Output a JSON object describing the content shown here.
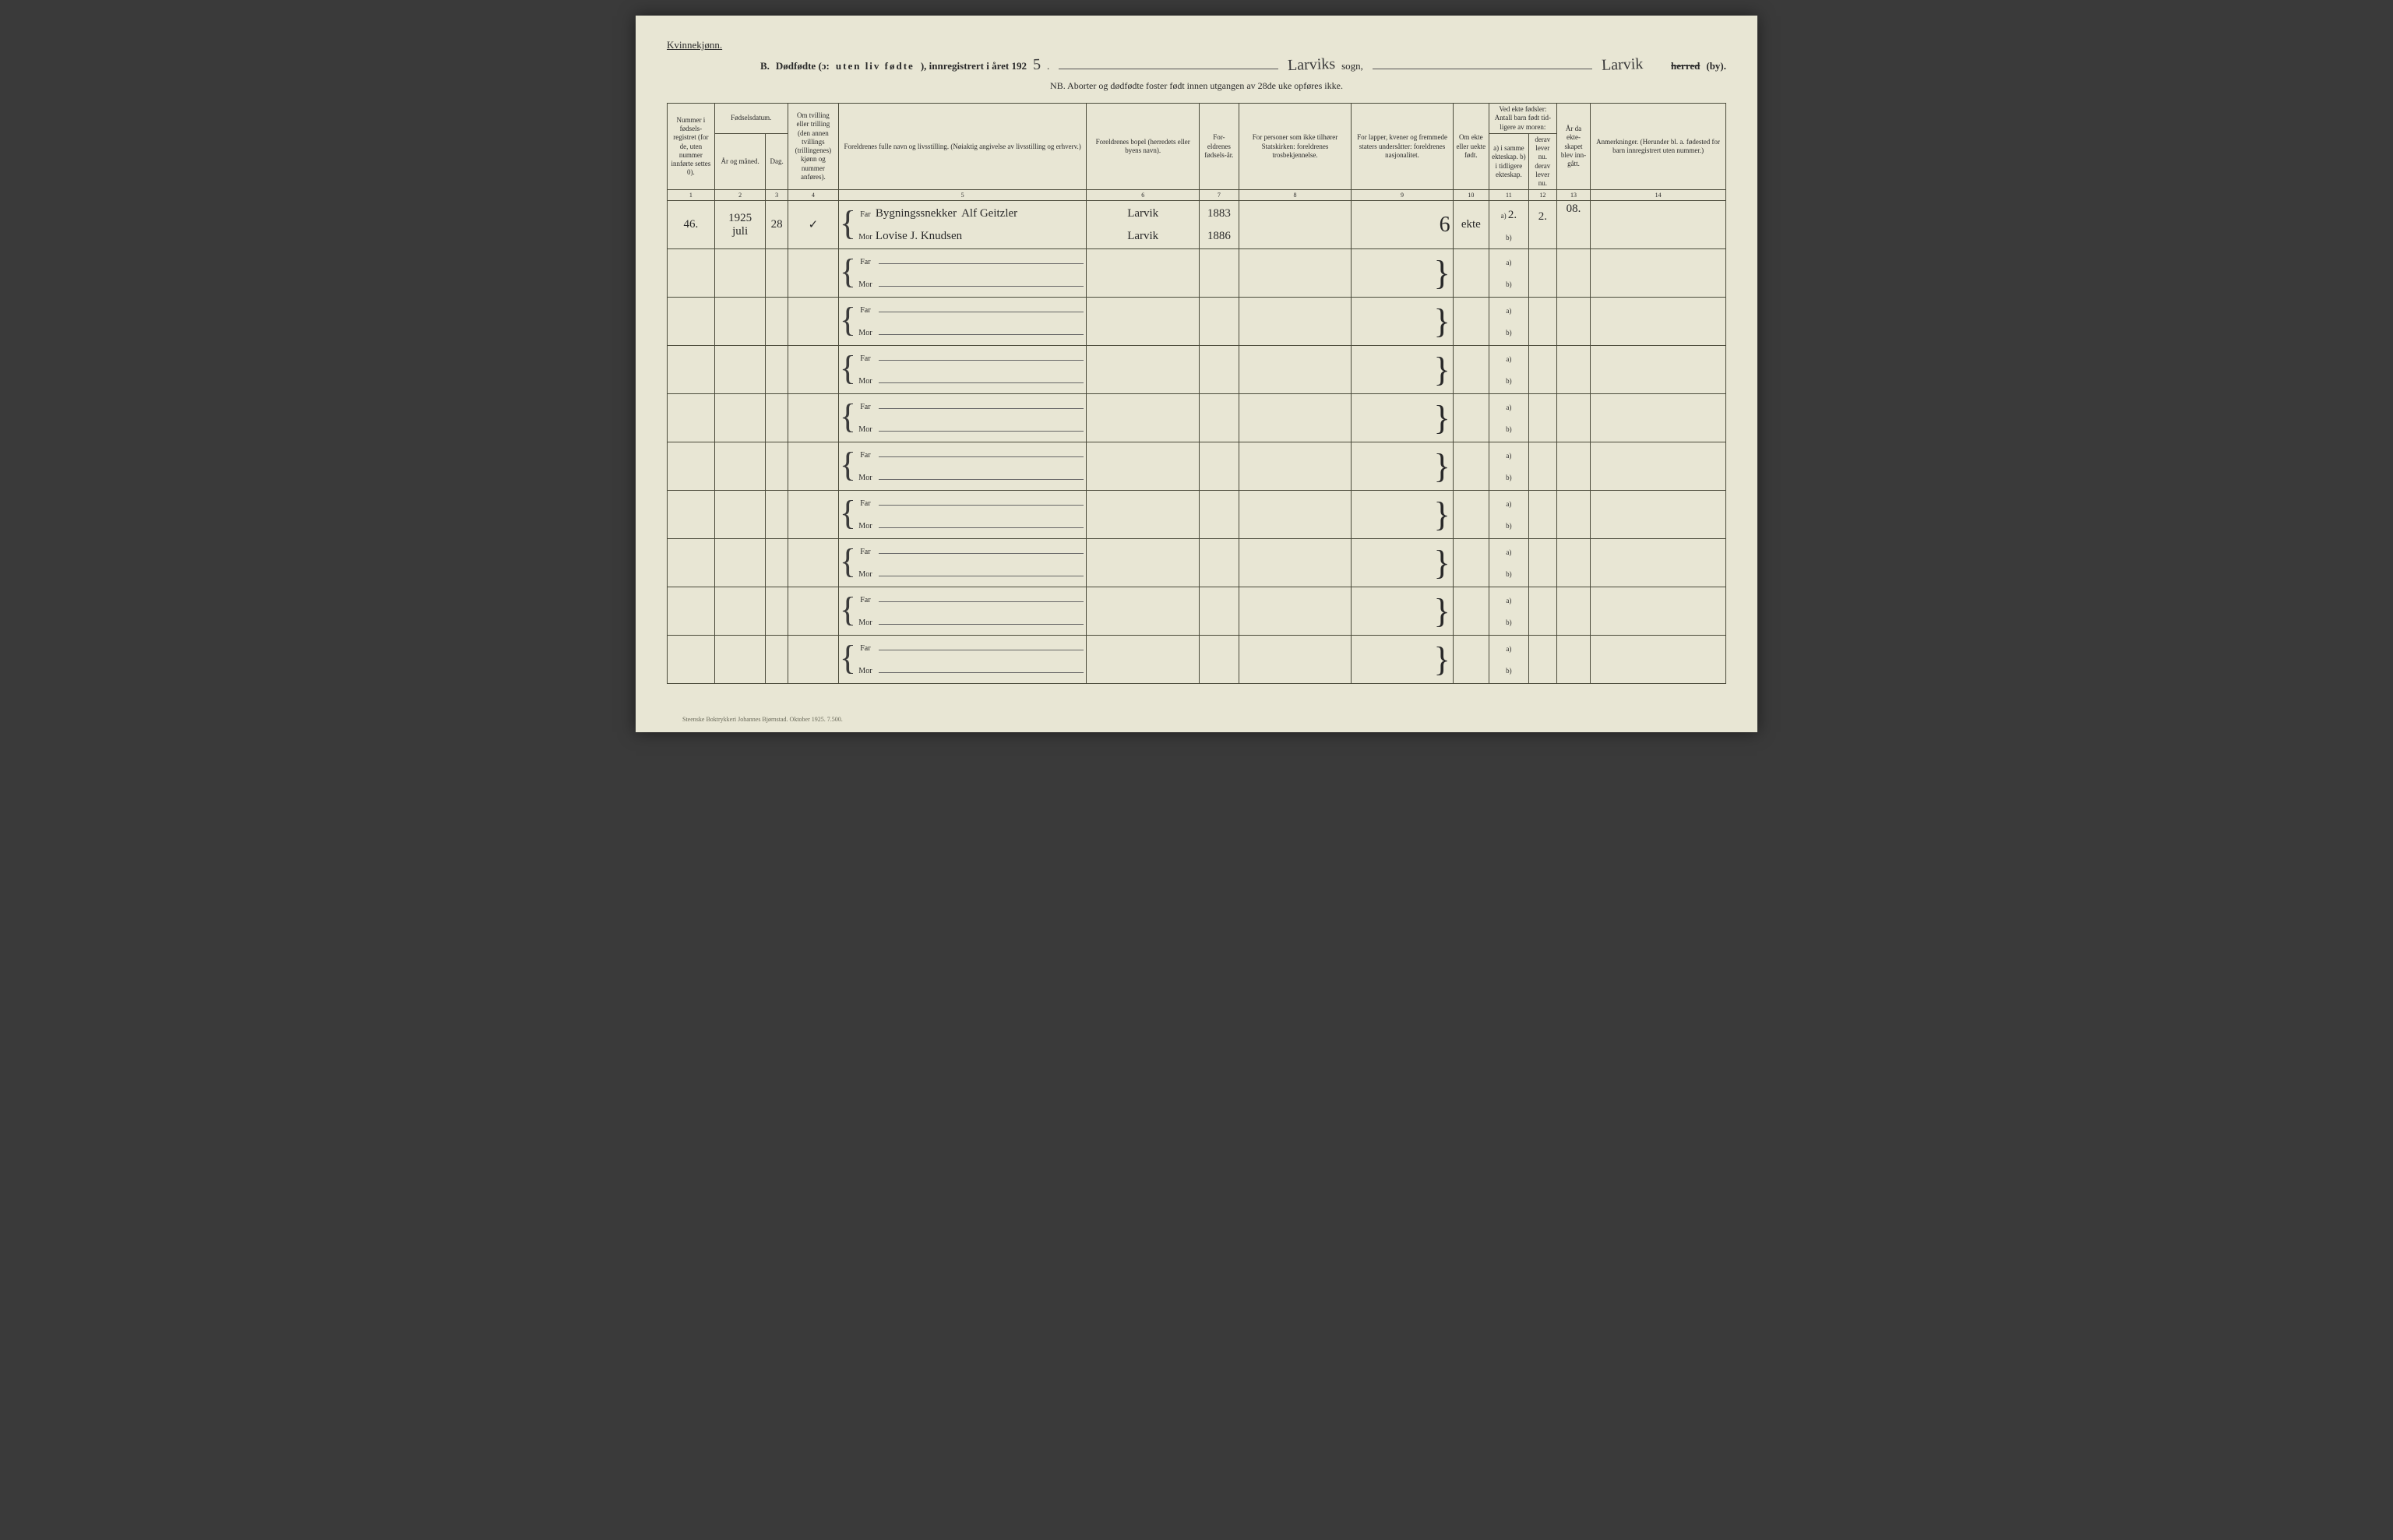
{
  "header": {
    "gender": "Kvinnekjønn.",
    "section": "B.",
    "title_a": "Dødfødte (ɔ:",
    "title_b": "uten liv fødte",
    "title_c": "), innregistrert i året 192",
    "year_suffix": "5",
    "sogn_hand": "Larviks",
    "sogn_label": "sogn,",
    "city_hand": "Larvik",
    "herred_strike": "herred",
    "by": "(by).",
    "nb": "NB.  Aborter og dødfødte foster født innen utgangen av 28de uke opføres ikke."
  },
  "columns": {
    "c1": "Nummer i fødsels-registret (for de, uten nummer innførte settes 0).",
    "c2_top": "Fødselsdatum.",
    "c2a": "År og måned.",
    "c2b": "Dag.",
    "c3": "Om tvilling eller trilling (den annen tvillings (trillingenes) kjønn og nummer anføres).",
    "c5": "Foreldrenes fulle navn og livsstilling. (Nøiaktig angivelse av livsstilling og erhverv.)",
    "c6": "Foreldrenes bopel (herredets eller byens navn).",
    "c7": "For-eldrenes fødsels-år.",
    "c8": "For personer som ikke tilhører Statskirken: foreldrenes trosbekjennelse.",
    "c9": "For lapper, kvener og fremmede staters undersåtter: foreldrenes nasjonalitet.",
    "c10": "Om ekte eller uekte født.",
    "c11_top": "Ved ekte fødsler: Antall barn født tid-ligere av moren:",
    "c11": "a) i samme ekteskap. b) i tidligere ekteskap.",
    "c12": "derav lever nu. derav lever nu.",
    "c13": "År da ekte-skapet blev inn-gått.",
    "c14": "Anmerkninger. (Herunder bl. a. fødested for barn innregistrert uten nummer.)",
    "far": "Far",
    "mor": "Mor",
    "nums": [
      "1",
      "2",
      "3",
      "4",
      "5",
      "6",
      "7",
      "8",
      "9",
      "10",
      "11",
      "12",
      "13",
      "14"
    ]
  },
  "row1": {
    "num": "46.",
    "year": "1925",
    "month": "juli",
    "day": "28",
    "tvilling": "✓",
    "far_occ": "Bygningssnekker",
    "far_name": "Alf Geitzler",
    "mor_name": "Lovise J. Knudsen",
    "far_bopel": "Larvik",
    "mor_bopel": "Larvik",
    "far_year": "1883",
    "mor_year": "1886",
    "col9": "6",
    "ekte": "ekte",
    "c11a": "2.",
    "c12a": "2.",
    "c13": "08."
  },
  "footer": "Steenske Boktrykkeri Johannes Bjørnstad.  Oktober 1925.   7.500."
}
